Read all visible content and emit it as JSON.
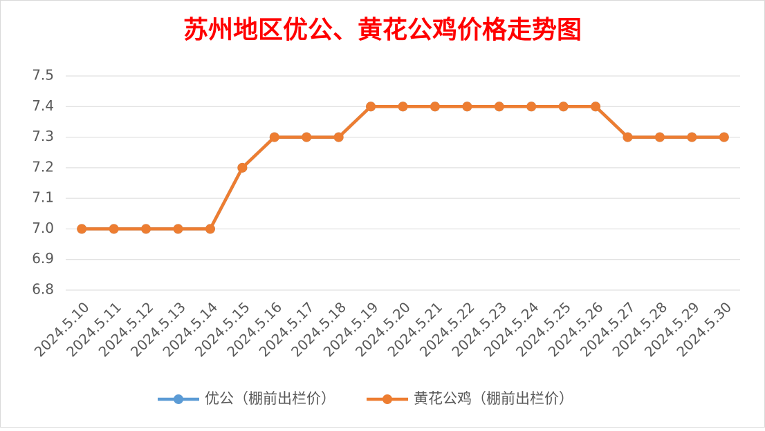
{
  "chart_data": {
    "type": "line",
    "title": "苏州地区优公、黄花公鸡价格走势图",
    "categories": [
      "2024.5.10",
      "2024.5.11",
      "2024.5.12",
      "2024.5.13",
      "2024.5.14",
      "2024.5.15",
      "2024.5.16",
      "2024.5.17",
      "2024.5.18",
      "2024.5.19",
      "2024.5.20",
      "2024.5.21",
      "2024.5.22",
      "2024.5.23",
      "2024.5.24",
      "2024.5.25",
      "2024.5.26",
      "2024.5.27",
      "2024.5.28",
      "2024.5.29",
      "2024.5.30"
    ],
    "series": [
      {
        "name": "优公（棚前出栏价）",
        "color": "#5b9bd5",
        "values": [
          7.0,
          7.0,
          7.0,
          7.0,
          7.0,
          7.2,
          7.3,
          7.3,
          7.3,
          7.4,
          7.4,
          7.4,
          7.4,
          7.4,
          7.4,
          7.4,
          7.4,
          7.3,
          7.3,
          7.3,
          7.3
        ]
      },
      {
        "name": "黄花公鸡（棚前出栏价）",
        "color": "#ed7d31",
        "values": [
          7.0,
          7.0,
          7.0,
          7.0,
          7.0,
          7.2,
          7.3,
          7.3,
          7.3,
          7.4,
          7.4,
          7.4,
          7.4,
          7.4,
          7.4,
          7.4,
          7.4,
          7.3,
          7.3,
          7.3,
          7.3
        ]
      }
    ],
    "ylim": [
      6.8,
      7.5
    ],
    "yticks": [
      6.8,
      6.9,
      {
        "value": 7.0,
        "label": "7.0"
      },
      7.1,
      7.2,
      7.3,
      7.4,
      7.5
    ],
    "grid": true,
    "legend": "bottom"
  }
}
